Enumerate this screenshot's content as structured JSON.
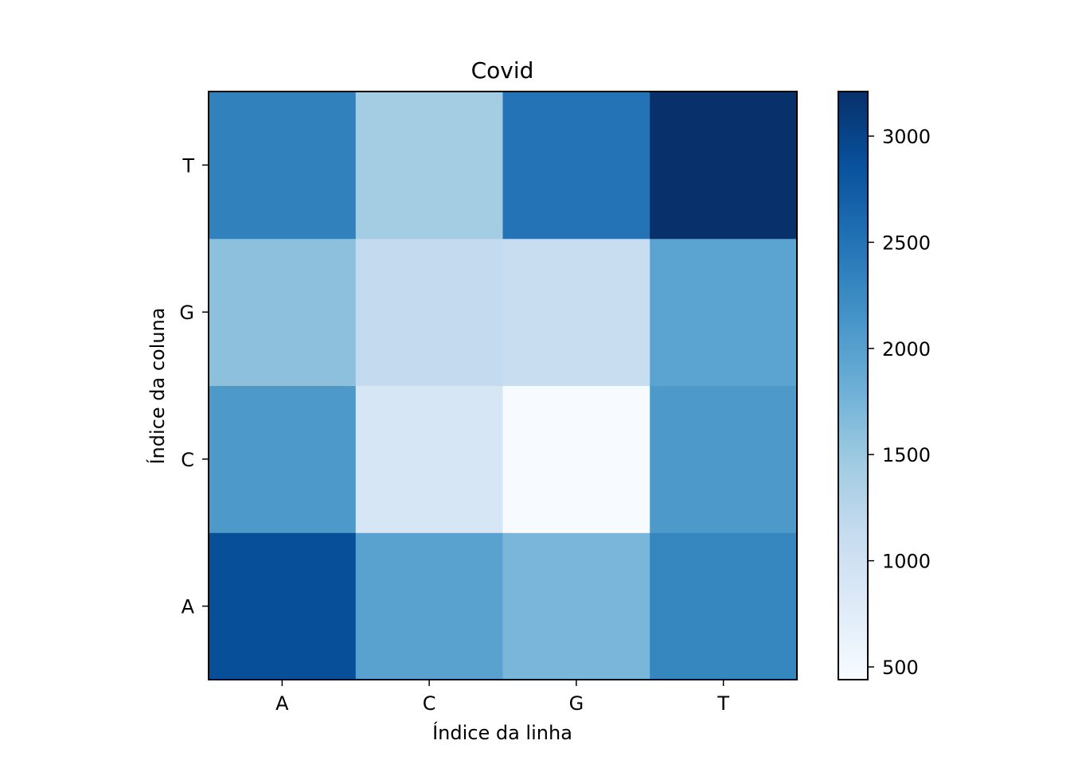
{
  "chart_data": {
    "type": "heatmap",
    "title": "Covid",
    "xlabel": "Índice da linha",
    "ylabel": "Índice da coluna",
    "x_categories": [
      "A",
      "C",
      "G",
      "T"
    ],
    "y_categories": [
      "A",
      "C",
      "G",
      "T"
    ],
    "cells": [
      {
        "x": "A",
        "y": "A",
        "value": 2880
      },
      {
        "x": "C",
        "y": "A",
        "value": 1980
      },
      {
        "x": "G",
        "y": "A",
        "value": 1720
      },
      {
        "x": "T",
        "y": "A",
        "value": 2300
      },
      {
        "x": "A",
        "y": "C",
        "value": 2080
      },
      {
        "x": "C",
        "y": "C",
        "value": 890
      },
      {
        "x": "G",
        "y": "C",
        "value": 440
      },
      {
        "x": "T",
        "y": "C",
        "value": 2080
      },
      {
        "x": "A",
        "y": "G",
        "value": 1600
      },
      {
        "x": "C",
        "y": "G",
        "value": 1150
      },
      {
        "x": "G",
        "y": "G",
        "value": 1090
      },
      {
        "x": "T",
        "y": "G",
        "value": 1960
      },
      {
        "x": "A",
        "y": "T",
        "value": 2350
      },
      {
        "x": "C",
        "y": "T",
        "value": 1430
      },
      {
        "x": "G",
        "y": "T",
        "value": 2500
      },
      {
        "x": "T",
        "y": "T",
        "value": 3210
      }
    ],
    "colormap": "Blues",
    "colorbar": {
      "vmin": 440,
      "vmax": 3210,
      "ticks": [
        500,
        1000,
        1500,
        2000,
        2500,
        3000
      ],
      "tick_labels": [
        "500",
        "1000",
        "1500",
        "2000",
        "2500",
        "3000"
      ]
    },
    "grid": false
  }
}
